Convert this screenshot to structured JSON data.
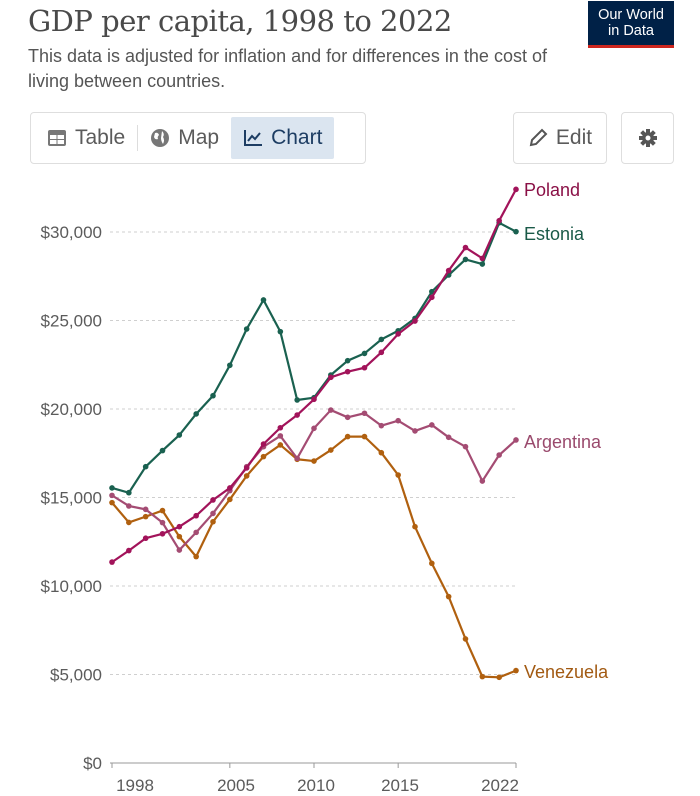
{
  "header": {
    "title": "GDP per capita, 1998 to 2022",
    "subtitle": "This data is adjusted for inflation and for differences in the cost of living between countries.",
    "logo_line1": "Our World",
    "logo_line2": "in Data"
  },
  "toolbar": {
    "tabs": [
      {
        "label": "Table",
        "icon": "table-icon"
      },
      {
        "label": "Map",
        "icon": "globe-icon"
      },
      {
        "label": "Chart",
        "icon": "line-chart-icon",
        "active": true
      }
    ],
    "edit_label": "Edit",
    "settings_icon": "gear-icon"
  },
  "chart_data": {
    "type": "line",
    "title": "GDP per capita, 1998 to 2022",
    "xlabel": "",
    "ylabel": "",
    "ylim": [
      0,
      30000
    ],
    "xlim": [
      1998,
      2022
    ],
    "yticks": [
      0,
      5000,
      10000,
      15000,
      20000,
      25000,
      30000
    ],
    "ytick_labels": [
      "$0",
      "$5,000",
      "$10,000",
      "$15,000",
      "$20,000",
      "$25,000",
      "$30,000"
    ],
    "xticks": [
      1998,
      2005,
      2010,
      2015,
      2022
    ],
    "xtick_labels": [
      "1998",
      "2005",
      "2010",
      "2015",
      "2022"
    ],
    "grid": "horizontal dashed",
    "legend": "inline labels at line ends (right)",
    "x": [
      1998,
      1999,
      2000,
      2001,
      2002,
      2003,
      2004,
      2005,
      2006,
      2007,
      2008,
      2009,
      2010,
      2011,
      2012,
      2013,
      2014,
      2015,
      2016,
      2017,
      2018,
      2019,
      2020,
      2021,
      2022
    ],
    "series": [
      {
        "name": "Venezuela",
        "color": "#b0600f",
        "label_color": "#a25a12",
        "values": [
          14710,
          13590,
          13920,
          14260,
          12790,
          11660,
          13630,
          14890,
          16220,
          17310,
          17970,
          17160,
          17060,
          17680,
          18440,
          18440,
          17530,
          16270,
          13350,
          11280,
          9400,
          7010,
          4880,
          4840,
          5220
        ]
      },
      {
        "name": "Argentina",
        "color": "#a44c73",
        "label_color": "#9a4a6d",
        "values": [
          15120,
          14520,
          14330,
          13580,
          12030,
          13030,
          14100,
          15390,
          16740,
          17870,
          18480,
          17210,
          18910,
          19940,
          19530,
          19760,
          19060,
          19340,
          18760,
          19100,
          18400,
          17870,
          15930,
          17400,
          18250
        ]
      },
      {
        "name": "Estonia",
        "color": "#1a6150",
        "label_color": "#1a5a48",
        "values": [
          15540,
          15270,
          16740,
          17650,
          18530,
          19720,
          20750,
          22470,
          24520,
          26160,
          24370,
          20510,
          20640,
          21920,
          22730,
          23140,
          23930,
          24420,
          25120,
          26630,
          27570,
          28450,
          28190,
          30520,
          30020
        ]
      },
      {
        "name": "Poland",
        "color": "#a2135a",
        "label_color": "#8a1046",
        "values": [
          11350,
          12000,
          12700,
          12950,
          13350,
          13970,
          14860,
          15540,
          16670,
          18020,
          18940,
          19660,
          20550,
          21790,
          22110,
          22330,
          23200,
          24240,
          24970,
          26310,
          27820,
          29120,
          28510,
          30640,
          32410
        ]
      }
    ]
  }
}
